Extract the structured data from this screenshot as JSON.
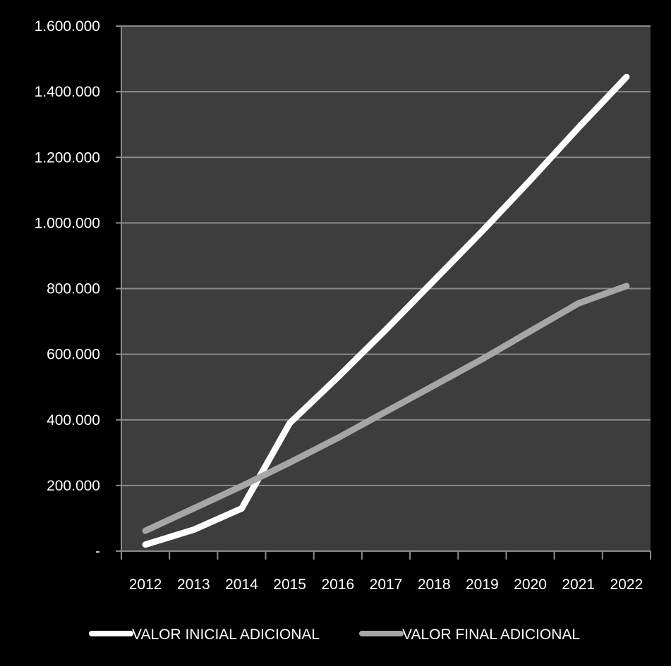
{
  "chart_data": {
    "type": "line",
    "title": "",
    "xlabel": "",
    "ylabel": "",
    "categories": [
      "2012",
      "2013",
      "2014",
      "2015",
      "2016",
      "2017",
      "2018",
      "2019",
      "2020",
      "2021",
      "2022"
    ],
    "y_tick_labels": [
      "-",
      "200.000",
      "400.000",
      "600.000",
      "800.000",
      "1.000.000",
      "1.200.000",
      "1.400.000",
      "1.600.000"
    ],
    "y_tick_values": [
      0,
      200000,
      400000,
      600000,
      800000,
      1000000,
      1200000,
      1400000,
      1600000
    ],
    "ylim": [
      0,
      1600000
    ],
    "grid": true,
    "legend_position": "bottom",
    "colors": {
      "page_background": "#000000",
      "plot_background": "#3d3d3d",
      "gridline": "#8a8a8a",
      "axis_text": "#ffffff"
    },
    "series": [
      {
        "name": "VALOR INICIAL ADICIONAL",
        "color": "#ffffff",
        "values": [
          20000,
          65000,
          130000,
          390000,
          530000,
          675000,
          825000,
          975000,
          1130000,
          1290000,
          1445000
        ]
      },
      {
        "name": "VALOR FINAL ADICIONAL",
        "color": "#a6a6a6",
        "values": [
          62000,
          130000,
          198000,
          270000,
          345000,
          425000,
          505000,
          585000,
          670000,
          755000,
          808000
        ]
      }
    ]
  }
}
